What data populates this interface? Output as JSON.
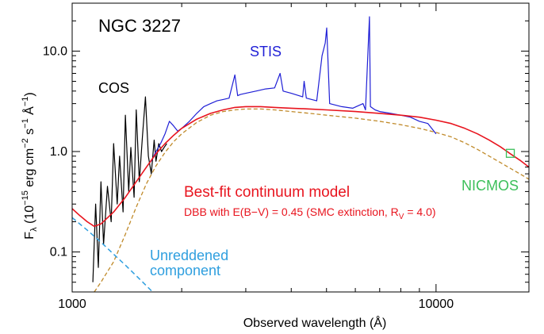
{
  "chart_data": {
    "type": "line",
    "xscale": "log",
    "yscale": "log",
    "xlim": [
      1000,
      18000
    ],
    "ylim": [
      0.04,
      30
    ],
    "grid": false,
    "xlabel": "Observed wavelength (Å)",
    "ylabel": "F_λ (10^-15 erg cm^-2 s^-1 Å^-1)",
    "ylabel_parts": {
      "F": "F",
      "lambda": "λ",
      "open": " (10",
      "exp1": "−15",
      "erg": " erg cm",
      "exp2": "−2",
      "s": " s",
      "exp3": "−1",
      "A": " Å",
      "exp4": "−1",
      "close": ")"
    },
    "xticks": [
      {
        "value": 1000,
        "label": "1000"
      },
      {
        "value": 10000,
        "label": "10000"
      }
    ],
    "yticks": [
      {
        "value": 0.1,
        "label": "0.1"
      },
      {
        "value": 1.0,
        "label": "1.0"
      },
      {
        "value": 10.0,
        "label": "10.0"
      }
    ],
    "annotations": {
      "object": "NGC 3227",
      "stis": "STIS",
      "cos": "COS",
      "nicmos": "NICMOS",
      "model_title": "Best-fit continuum model",
      "model_sub_prefix": "DBB with E(B−V) = 0.45 (SMC extinction, R",
      "model_sub_sub": "V",
      "model_sub_suffix": " = 4.0)",
      "unred_line1": "Unreddened",
      "unred_line2": "component"
    },
    "colors": {
      "cos": "#000000",
      "stis": "#1f1fd6",
      "model": "#e8141e",
      "reddened_component": "#c08a2a",
      "unreddened": "#2f9fdf",
      "nicmos": "#3cbf5a"
    },
    "series": [
      {
        "name": "COS",
        "x": [
          1140,
          1160,
          1180,
          1200,
          1220,
          1250,
          1280,
          1300,
          1330,
          1350,
          1380,
          1400,
          1430,
          1450,
          1480,
          1500,
          1530,
          1560,
          1590,
          1620,
          1650,
          1680,
          1700,
          1730,
          1760,
          1790,
          1820
        ],
        "y": [
          0.05,
          0.3,
          0.07,
          0.5,
          0.12,
          0.45,
          0.2,
          1.2,
          0.3,
          0.9,
          0.25,
          2.3,
          0.4,
          1.1,
          0.35,
          2.6,
          0.5,
          1.4,
          3.5,
          0.9,
          0.6,
          1.3,
          0.8,
          1.2,
          1.0,
          1.1,
          1.2
        ]
      },
      {
        "name": "STIS",
        "x": [
          1650,
          1700,
          1750,
          1800,
          1850,
          1900,
          1950,
          2000,
          2100,
          2200,
          2300,
          2400,
          2500,
          2600,
          2700,
          2800,
          2850,
          2900,
          3000,
          3200,
          3400,
          3600,
          3727,
          3800,
          4000,
          4300,
          4340,
          4400,
          4700,
          4861,
          4959,
          5007,
          5100,
          5500,
          5900,
          6300,
          6400,
          6563,
          6600,
          6800,
          7000,
          7500,
          8000,
          8500,
          9000,
          9500,
          10000
        ],
        "y": [
          0.8,
          1.0,
          1.2,
          1.5,
          2.0,
          1.8,
          1.6,
          1.7,
          2.0,
          2.4,
          2.8,
          3.0,
          3.2,
          3.3,
          3.4,
          5.8,
          3.6,
          3.7,
          3.8,
          4.0,
          4.2,
          4.3,
          6.0,
          4.0,
          3.8,
          3.5,
          5.0,
          3.4,
          3.2,
          9.0,
          12.0,
          17.0,
          3.0,
          2.8,
          2.7,
          3.0,
          2.6,
          22.0,
          2.8,
          2.6,
          2.5,
          2.4,
          2.3,
          2.2,
          2.0,
          1.9,
          1.5
        ]
      },
      {
        "name": "Best-fit continuum model",
        "x": [
          1000,
          1050,
          1100,
          1150,
          1200,
          1300,
          1400,
          1500,
          1600,
          1700,
          1800,
          1900,
          2000,
          2200,
          2400,
          2600,
          2800,
          3000,
          3300,
          3600,
          4000,
          4500,
          5000,
          6000,
          7000,
          8000,
          9000,
          10000,
          11000,
          12000,
          13000,
          14000,
          15000,
          16000,
          17000,
          18000
        ],
        "y": [
          0.27,
          0.23,
          0.2,
          0.18,
          0.19,
          0.25,
          0.35,
          0.5,
          0.7,
          0.95,
          1.2,
          1.45,
          1.7,
          2.1,
          2.4,
          2.6,
          2.75,
          2.8,
          2.8,
          2.75,
          2.7,
          2.65,
          2.6,
          2.5,
          2.4,
          2.3,
          2.2,
          2.05,
          1.9,
          1.7,
          1.5,
          1.3,
          1.12,
          0.95,
          0.82,
          0.7
        ]
      },
      {
        "name": "Reddened component",
        "x": [
          1150,
          1200,
          1300,
          1400,
          1500,
          1600,
          1700,
          1800,
          1900,
          2000,
          2200,
          2400,
          2600,
          2800,
          3000,
          3300,
          3600,
          4000,
          4500,
          5000,
          6000,
          7000,
          8000,
          9000,
          10000,
          11000,
          12000,
          13000,
          14000,
          15000,
          16000,
          17000,
          18000
        ],
        "y": [
          0.04,
          0.05,
          0.08,
          0.15,
          0.28,
          0.48,
          0.72,
          0.98,
          1.25,
          1.5,
          1.95,
          2.3,
          2.5,
          2.6,
          2.65,
          2.65,
          2.6,
          2.5,
          2.4,
          2.3,
          2.15,
          2.0,
          1.85,
          1.7,
          1.55,
          1.4,
          1.22,
          1.05,
          0.9,
          0.78,
          0.68,
          0.6,
          0.53
        ]
      },
      {
        "name": "Unreddened component",
        "x": [
          1000,
          1100,
          1200,
          1300,
          1400,
          1500,
          1600,
          1700
        ],
        "y": [
          0.22,
          0.165,
          0.125,
          0.095,
          0.074,
          0.058,
          0.046,
          0.037
        ]
      },
      {
        "name": "NICMOS",
        "x": [
          16000
        ],
        "y": [
          0.96
        ]
      }
    ]
  }
}
